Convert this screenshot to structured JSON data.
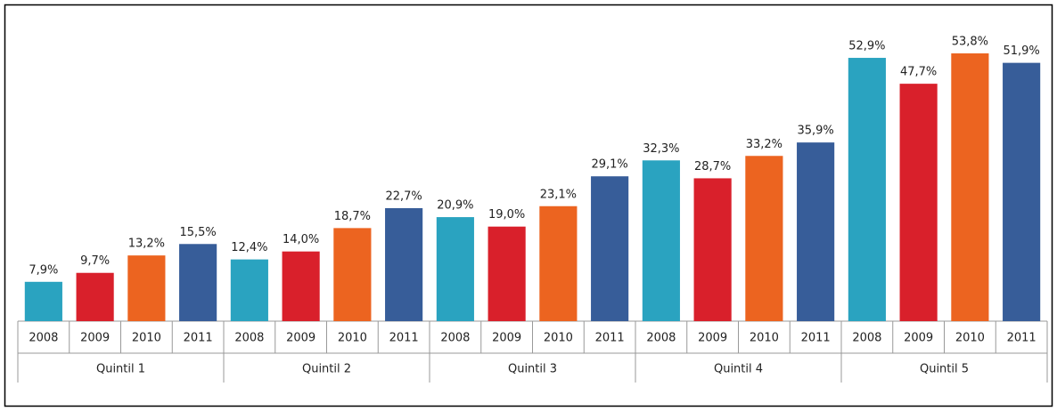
{
  "chart_data": {
    "type": "bar",
    "categories": [
      "Quintil 1",
      "Quintil 2",
      "Quintil 3",
      "Quintil 4",
      "Quintil 5"
    ],
    "series": [
      {
        "name": "2008",
        "color": "#2aa3c0",
        "values": [
          7.9,
          12.4,
          20.9,
          32.3,
          52.9
        ],
        "value_labels": [
          "7,9%",
          "12,4%",
          "20,9%",
          "32,3%",
          "52,9%"
        ]
      },
      {
        "name": "2009",
        "color": "#d9202b",
        "values": [
          9.7,
          14.0,
          19.0,
          28.7,
          47.7
        ],
        "value_labels": [
          "9,7%",
          "14,0%",
          "19,0%",
          "28,7%",
          "47,7%"
        ]
      },
      {
        "name": "2010",
        "color": "#ec6420",
        "values": [
          13.2,
          18.7,
          23.1,
          33.2,
          53.8
        ],
        "value_labels": [
          "13,2%",
          "18,7%",
          "23,1%",
          "33,2%",
          "53,8%"
        ]
      },
      {
        "name": "2011",
        "color": "#375d99",
        "values": [
          15.5,
          22.7,
          29.1,
          35.9,
          51.9
        ],
        "value_labels": [
          "15,5%",
          "22,7%",
          "29,1%",
          "35,9%",
          "51,9%"
        ]
      }
    ]
  }
}
